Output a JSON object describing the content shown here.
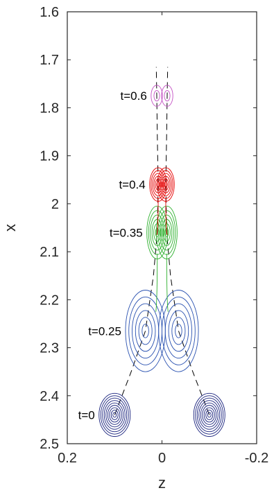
{
  "chart_data": {
    "type": "contour",
    "xlabel": "z",
    "ylabel": "x",
    "xlim": [
      0.2,
      -0.2
    ],
    "ylim": [
      1.6,
      2.5
    ],
    "y_reversed": true,
    "x_reversed": true,
    "xticks": [
      0.2,
      0,
      -0.2
    ],
    "xtick_labels": [
      "0.2",
      "0",
      "-0.2"
    ],
    "yticks": [
      1.6,
      1.7,
      1.8,
      1.9,
      2.0,
      2.1,
      2.2,
      2.3,
      2.4,
      2.5
    ],
    "ytick_labels": [
      "1.6",
      "1.7",
      "1.8",
      "1.9",
      "2",
      "2.1",
      "2.2",
      "2.3",
      "2.4",
      "2.5"
    ],
    "snapshots": [
      {
        "label": "t=0",
        "color": "#1a237e",
        "centers": [
          {
            "z": 0.1,
            "x": 2.44
          },
          {
            "z": -0.1,
            "x": 2.44
          }
        ],
        "rz": 0.033,
        "rx": 0.045,
        "levels": 9
      },
      {
        "label": "t=0.25",
        "color": "#2850b0",
        "centers": [
          {
            "z": 0.035,
            "x": 2.265
          },
          {
            "z": -0.035,
            "x": 2.265
          }
        ],
        "rz": 0.042,
        "rx": 0.085,
        "levels": 6
      },
      {
        "label": "t=0.35",
        "color": "#2db02d",
        "centers": [
          {
            "z": 0.01,
            "x": 2.06
          },
          {
            "z": -0.01,
            "x": 2.06
          }
        ],
        "rz": 0.022,
        "rx": 0.055,
        "levels": 6
      },
      {
        "label": "t=0.4",
        "color": "#e60000",
        "centers": [
          {
            "z": 0.008,
            "x": 1.96
          },
          {
            "z": -0.008,
            "x": 1.96
          }
        ],
        "rz": 0.018,
        "rx": 0.035,
        "levels": 6
      },
      {
        "label": "t=0.6",
        "color": "#c34fc3",
        "centers": [
          {
            "z": 0.011,
            "x": 1.775
          },
          {
            "z": -0.011,
            "x": 1.775
          }
        ],
        "rz": 0.012,
        "rx": 0.022,
        "levels": 2
      }
    ],
    "trajectories": [
      {
        "points": [
          [
            0.1,
            2.44
          ],
          [
            0.065,
            2.35
          ],
          [
            0.035,
            2.265
          ],
          [
            0.018,
            2.15
          ],
          [
            0.01,
            2.06
          ],
          [
            0.008,
            1.96
          ],
          [
            0.01,
            1.85
          ],
          [
            0.011,
            1.775
          ],
          [
            0.012,
            1.715
          ]
        ]
      },
      {
        "points": [
          [
            -0.1,
            2.44
          ],
          [
            -0.065,
            2.35
          ],
          [
            -0.035,
            2.265
          ],
          [
            -0.018,
            2.15
          ],
          [
            -0.01,
            2.06
          ],
          [
            -0.008,
            1.96
          ],
          [
            -0.01,
            1.85
          ],
          [
            -0.011,
            1.775
          ],
          [
            -0.012,
            1.715
          ]
        ]
      }
    ]
  }
}
